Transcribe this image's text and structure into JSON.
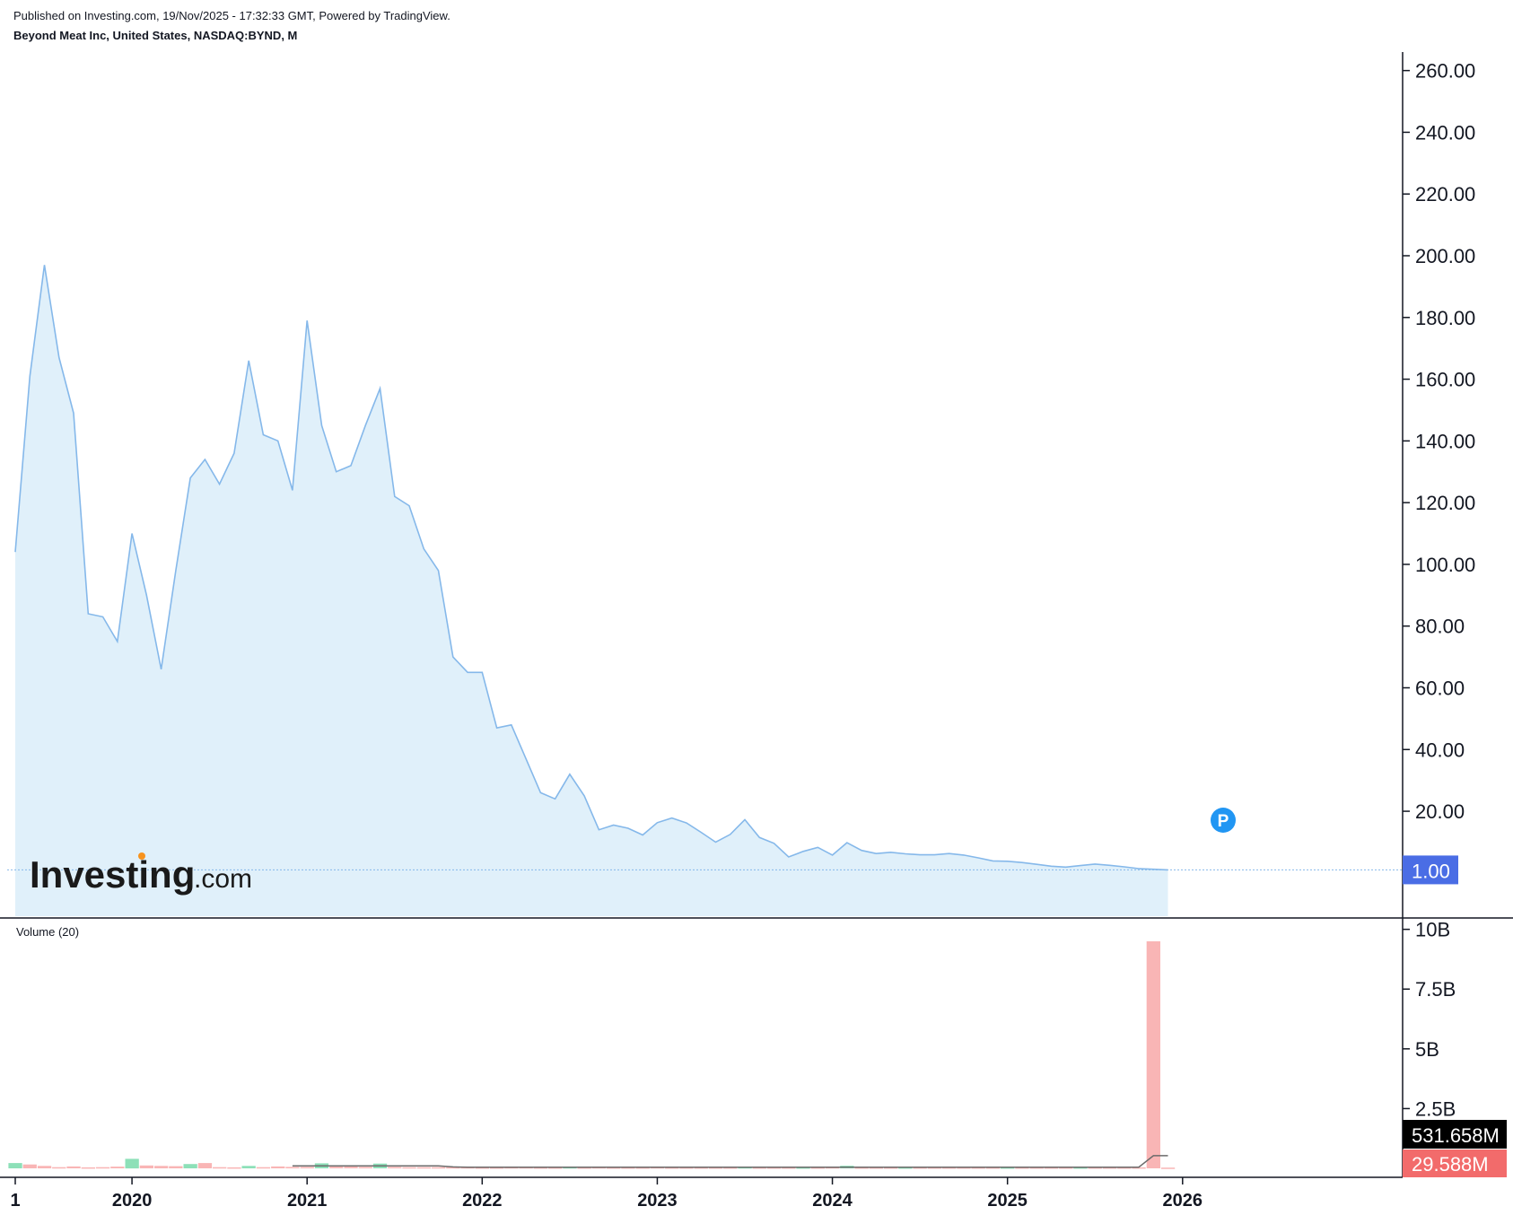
{
  "header": {
    "published": "Published on Investing.com, 19/Nov/2025 - 17:32:33 GMT, Powered by TradingView.",
    "symbol": "Beyond Meat Inc, United States, NASDAQ:BYND, M"
  },
  "logo": {
    "main": "Investing",
    "suffix": ".com"
  },
  "marker": {
    "label": "P",
    "color": "#2196f3"
  },
  "colors": {
    "line": "#85b8ea",
    "area": "#e0f0fa",
    "price_badge": "#4a6de5",
    "vol_up": "#8de0b8",
    "vol_down": "#f9b5b5",
    "vol_ma": "#6b6b6b",
    "last_vol_badge": "#000000",
    "cur_vol_badge": "#f26b6b"
  },
  "price_badge": "1.00",
  "volume_title": "Volume (20)",
  "volume_badges": {
    "ma": "531.658M",
    "current": "29.588M"
  },
  "chart_data": {
    "type": "area",
    "title": "Beyond Meat Inc, United States, NASDAQ:BYND, M",
    "x_ticks": [
      "1",
      "2020",
      "2021",
      "2022",
      "2023",
      "2024",
      "2025",
      "2026"
    ],
    "y_ticks": [
      "260.00",
      "240.00",
      "220.00",
      "200.00",
      "180.00",
      "160.00",
      "140.00",
      "120.00",
      "100.00",
      "80.00",
      "60.00",
      "40.00",
      "20.00"
    ],
    "ylim": [
      -14,
      266
    ],
    "x_start": "2019-05",
    "series": [
      {
        "values": [
          104,
          161,
          197,
          167,
          149,
          84,
          83,
          75,
          110,
          90,
          66,
          98,
          128,
          134,
          126,
          136,
          166,
          142,
          140,
          124,
          179,
          145,
          130,
          132,
          145,
          157,
          122,
          119,
          105,
          98,
          70,
          65,
          65,
          47,
          48,
          37,
          26,
          24,
          32,
          25,
          14,
          15.5,
          14.5,
          12.3,
          16.3,
          17.8,
          16.2,
          13.2,
          10,
          12.5,
          17.3,
          11.5,
          9.6,
          5.2,
          7,
          8.3,
          5.8,
          9.8,
          7.3,
          6.3,
          6.7,
          6.2,
          5.9,
          5.9,
          6.3,
          5.8,
          4.9,
          3.9,
          3.8,
          3.4,
          2.8,
          2.2,
          1.9,
          2.4,
          2.9,
          2.5,
          2,
          1.4,
          1.2,
          1
        ]
      }
    ],
    "volume": {
      "title": "Volume (20)",
      "y_ticks": [
        "10B",
        "7.5B",
        "5B",
        "2.5B"
      ],
      "ylim": [
        -0.3,
        10.4
      ],
      "unit": "B",
      "values": [
        0.22,
        0.16,
        0.1,
        0.05,
        0.08,
        0.04,
        0.05,
        0.07,
        0.4,
        0.12,
        0.1,
        0.09,
        0.18,
        0.22,
        0.05,
        0.04,
        0.1,
        0.05,
        0.08,
        0.06,
        0.06,
        0.21,
        0.07,
        0.07,
        0.06,
        0.2,
        0.06,
        0.05,
        0.05,
        0.05,
        0.05,
        0.05,
        0.04,
        0.04,
        0.05,
        0.05,
        0.04,
        0.04,
        0.05,
        0.04,
        0.05,
        0.04,
        0.04,
        0.04,
        0.05,
        0.04,
        0.04,
        0.04,
        0.04,
        0.04,
        0.05,
        0.04,
        0.04,
        0.04,
        0.04,
        0.04,
        0.05,
        0.11,
        0.04,
        0.04,
        0.04,
        0.04,
        0.04,
        0.04,
        0.04,
        0.04,
        0.04,
        0.04,
        0.04,
        0.04,
        0.04,
        0.04,
        0.04,
        0.04,
        0.04,
        0.04,
        0.04,
        0.04,
        9.5,
        0.03
      ],
      "up": [
        true,
        false,
        false,
        false,
        false,
        false,
        false,
        false,
        true,
        false,
        false,
        false,
        true,
        false,
        false,
        false,
        true,
        false,
        false,
        false,
        false,
        true,
        false,
        false,
        false,
        true,
        false,
        false,
        false,
        false,
        false,
        false,
        false,
        false,
        false,
        false,
        false,
        false,
        true,
        false,
        false,
        false,
        false,
        false,
        false,
        false,
        false,
        false,
        false,
        false,
        true,
        false,
        false,
        false,
        true,
        false,
        false,
        true,
        false,
        false,
        false,
        true,
        false,
        false,
        false,
        false,
        false,
        false,
        true,
        false,
        false,
        false,
        false,
        true,
        false,
        false,
        false,
        false,
        false,
        false
      ],
      "ma": [
        null,
        null,
        null,
        null,
        null,
        null,
        null,
        null,
        null,
        null,
        null,
        null,
        null,
        null,
        null,
        null,
        null,
        null,
        null,
        0.1,
        0.1,
        0.1,
        0.1,
        0.1,
        0.1,
        0.1,
        0.1,
        0.1,
        0.1,
        0.1,
        0.06,
        0.05,
        0.05,
        0.05,
        0.05,
        0.05,
        0.05,
        0.05,
        0.05,
        0.05,
        0.05,
        0.05,
        0.05,
        0.05,
        0.05,
        0.05,
        0.05,
        0.05,
        0.05,
        0.05,
        0.05,
        0.05,
        0.05,
        0.05,
        0.05,
        0.05,
        0.05,
        0.05,
        0.05,
        0.05,
        0.05,
        0.05,
        0.05,
        0.05,
        0.05,
        0.05,
        0.05,
        0.05,
        0.05,
        0.05,
        0.05,
        0.05,
        0.05,
        0.05,
        0.05,
        0.05,
        0.05,
        0.05,
        0.53,
        0.53
      ]
    }
  }
}
